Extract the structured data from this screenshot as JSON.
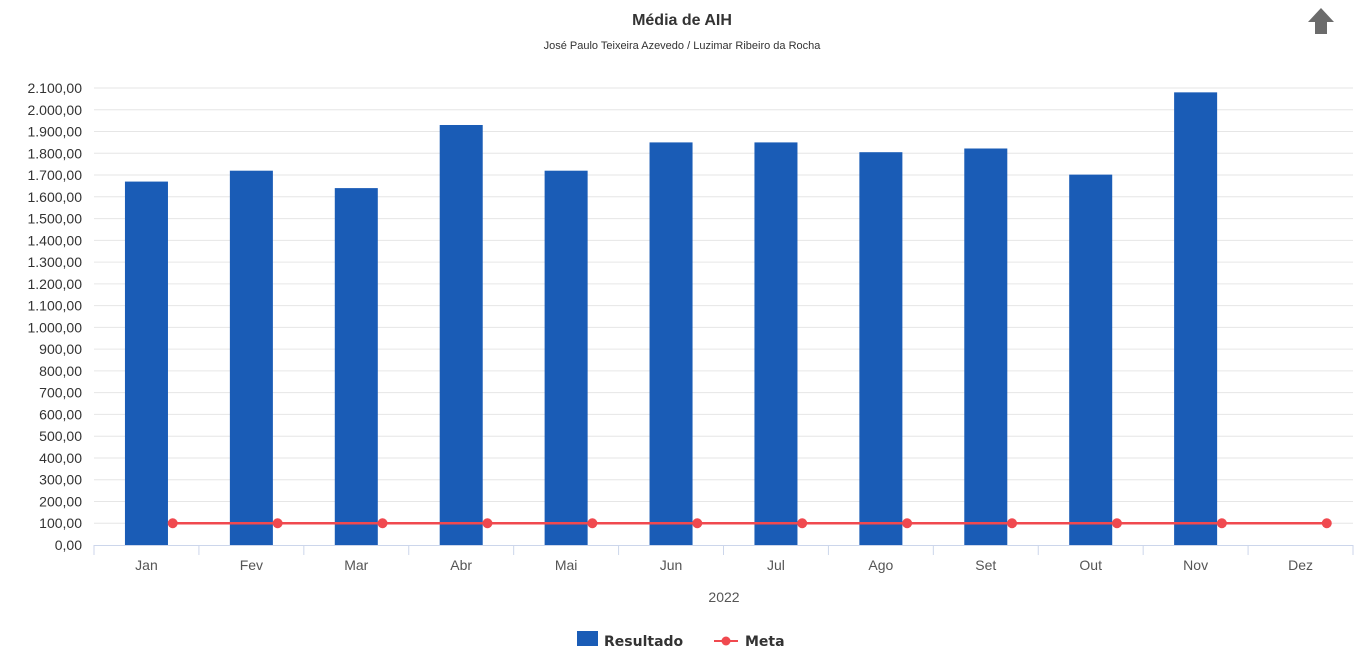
{
  "chart_data": {
    "type": "bar",
    "title": "Média de AIH",
    "subtitle": "José Paulo Teixeira Azevedo / Luzimar Ribeiro da Rocha",
    "categories": [
      "Jan",
      "Fev",
      "Mar",
      "Abr",
      "Mai",
      "Jun",
      "Jul",
      "Ago",
      "Set",
      "Out",
      "Nov",
      "Dez"
    ],
    "xlabel": "2022",
    "ylabel": "",
    "ylim": [
      0,
      2100
    ],
    "ytick_step": 100,
    "ytick_labels": [
      "0,00",
      "100,00",
      "200,00",
      "300,00",
      "400,00",
      "500,00",
      "600,00",
      "700,00",
      "800,00",
      "900,00",
      "1.000,00",
      "1.100,00",
      "1.200,00",
      "1.300,00",
      "1.400,00",
      "1.500,00",
      "1.600,00",
      "1.700,00",
      "1.800,00",
      "1.900,00",
      "2.000,00",
      "2.100,00"
    ],
    "grid": true,
    "legend_position": "bottom-center",
    "series": [
      {
        "name": "Resultado",
        "type": "bar",
        "color": "#1a5cb6",
        "values": [
          1670,
          1720,
          1640,
          1930,
          1720,
          1850,
          1850,
          1805,
          1822,
          1702,
          2080,
          null
        ]
      },
      {
        "name": "Meta",
        "type": "line",
        "color": "#f0494f",
        "values": [
          100,
          100,
          100,
          100,
          100,
          100,
          100,
          100,
          100,
          100,
          100,
          100
        ]
      }
    ]
  },
  "export": {
    "icon": "arrow-up-icon",
    "color": "#6b6b6b"
  }
}
